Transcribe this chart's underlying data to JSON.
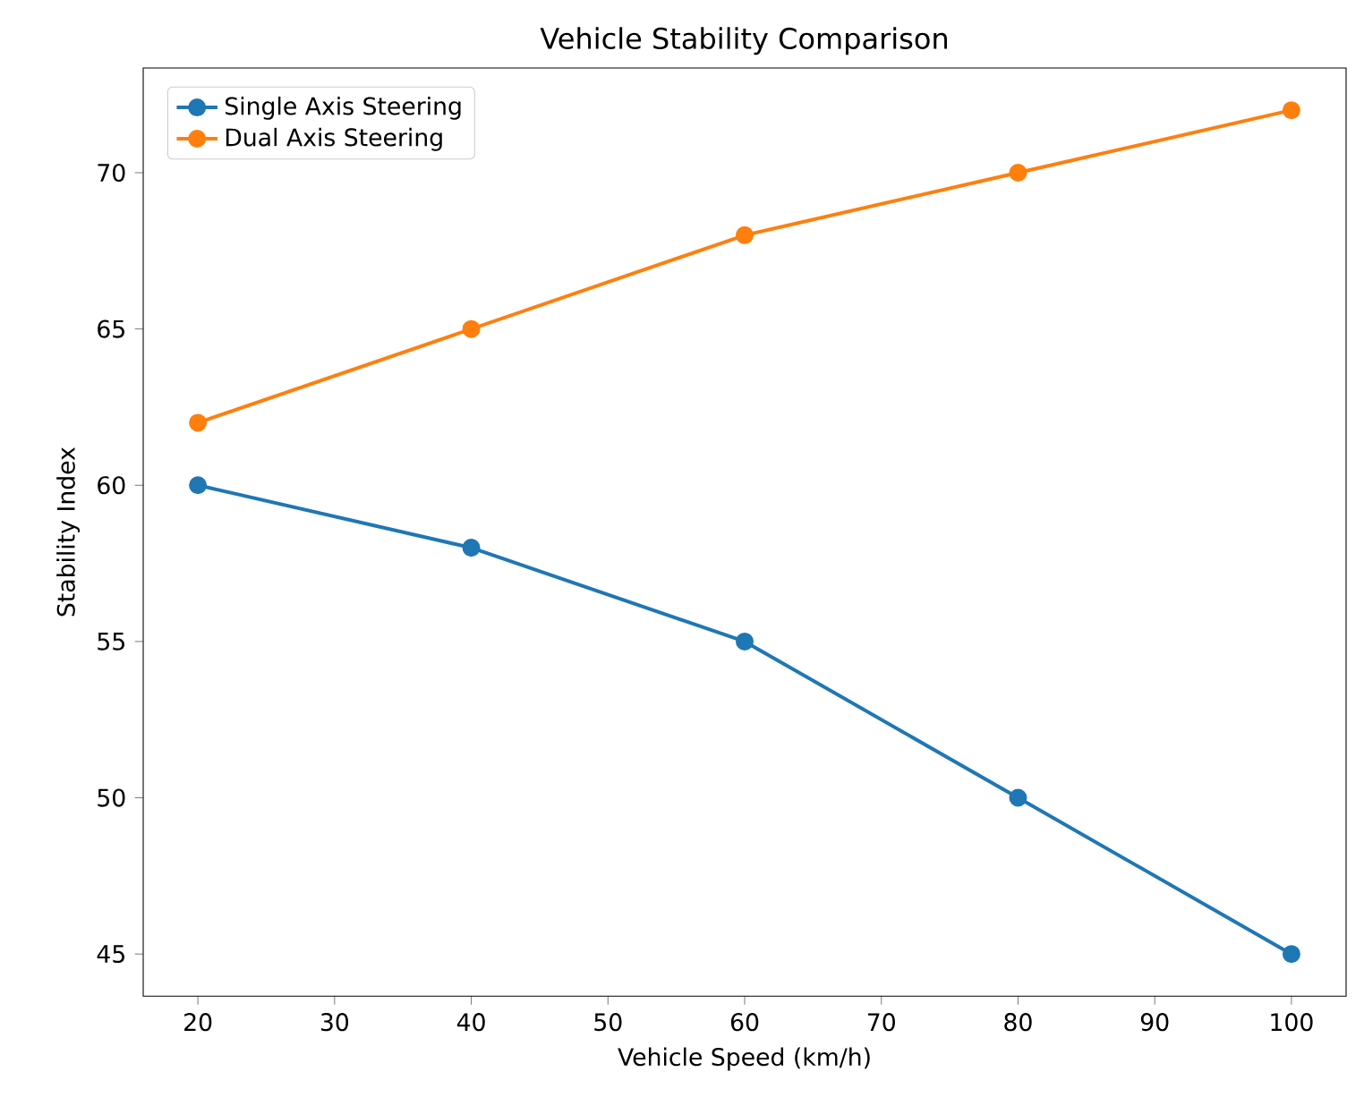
{
  "chart_data": {
    "type": "line",
    "title": "Vehicle Stability Comparison",
    "xlabel": "Vehicle Speed (km/h)",
    "ylabel": "Stability Index",
    "x": [
      20,
      40,
      60,
      80,
      100
    ],
    "series": [
      {
        "name": "Single Axis Steering",
        "color": "#1f77b4",
        "values": [
          60,
          58,
          55,
          50,
          45
        ]
      },
      {
        "name": "Dual Axis Steering",
        "color": "#ff7f0e",
        "values": [
          62,
          65,
          68,
          70,
          72
        ]
      }
    ],
    "xlim": [
      16,
      104
    ],
    "ylim": [
      43.65,
      73.35
    ],
    "xticks": [
      20,
      30,
      40,
      50,
      60,
      70,
      80,
      90,
      100
    ],
    "yticks": [
      45,
      50,
      55,
      60,
      65,
      70
    ],
    "grid": false,
    "legend": "top left",
    "marker": "circle",
    "line_style": "solid"
  }
}
